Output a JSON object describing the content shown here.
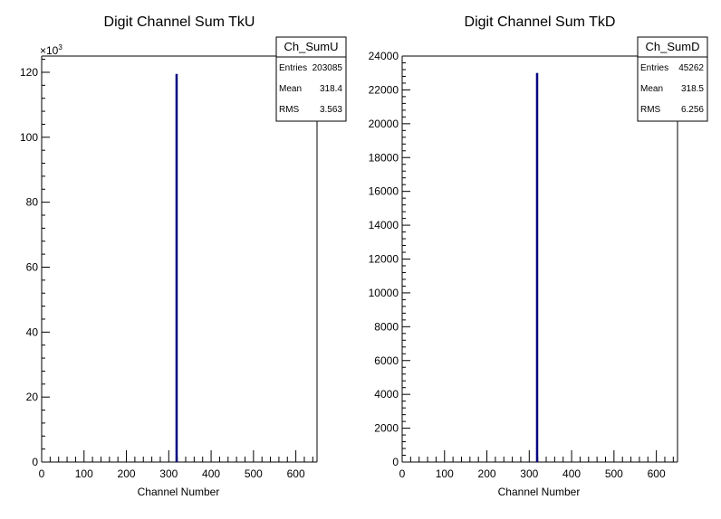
{
  "chart_data": [
    {
      "type": "bar",
      "title": "Digit Channel Sum TkU",
      "xlabel": "Channel Number",
      "ylabel": "",
      "xlim": [
        0,
        650
      ],
      "ylim": [
        0,
        125
      ],
      "y_multiplier_label": "×10",
      "y_multiplier_exp": "3",
      "xticks": [
        "0",
        "100",
        "200",
        "300",
        "400",
        "500",
        "600"
      ],
      "yticks": [
        "0",
        "20",
        "40",
        "60",
        "80",
        "100",
        "120"
      ],
      "bins": [
        {
          "x": 318,
          "value": 119.5
        }
      ],
      "bar_color": "#000080",
      "stats": {
        "name": "Ch_SumU",
        "rows": [
          {
            "label": "Entries",
            "value": "203085"
          },
          {
            "label": "Mean",
            "value": "318.4"
          },
          {
            "label": "RMS",
            "value": "3.563"
          }
        ]
      }
    },
    {
      "type": "bar",
      "title": "Digit Channel Sum TkD",
      "xlabel": "Channel Number",
      "ylabel": "",
      "xlim": [
        0,
        650
      ],
      "ylim": [
        0,
        24000
      ],
      "xticks": [
        "0",
        "100",
        "200",
        "300",
        "400",
        "500",
        "600"
      ],
      "yticks": [
        "0",
        "2000",
        "4000",
        "6000",
        "8000",
        "10000",
        "12000",
        "14000",
        "16000",
        "18000",
        "20000",
        "22000",
        "24000"
      ],
      "bins": [
        {
          "x": 318,
          "value": 23000
        }
      ],
      "bar_color": "#000080",
      "stats": {
        "name": "Ch_SumD",
        "rows": [
          {
            "label": "Entries",
            "value": "45262"
          },
          {
            "label": "Mean",
            "value": "318.5"
          },
          {
            "label": "RMS",
            "value": "6.256"
          }
        ]
      }
    }
  ]
}
